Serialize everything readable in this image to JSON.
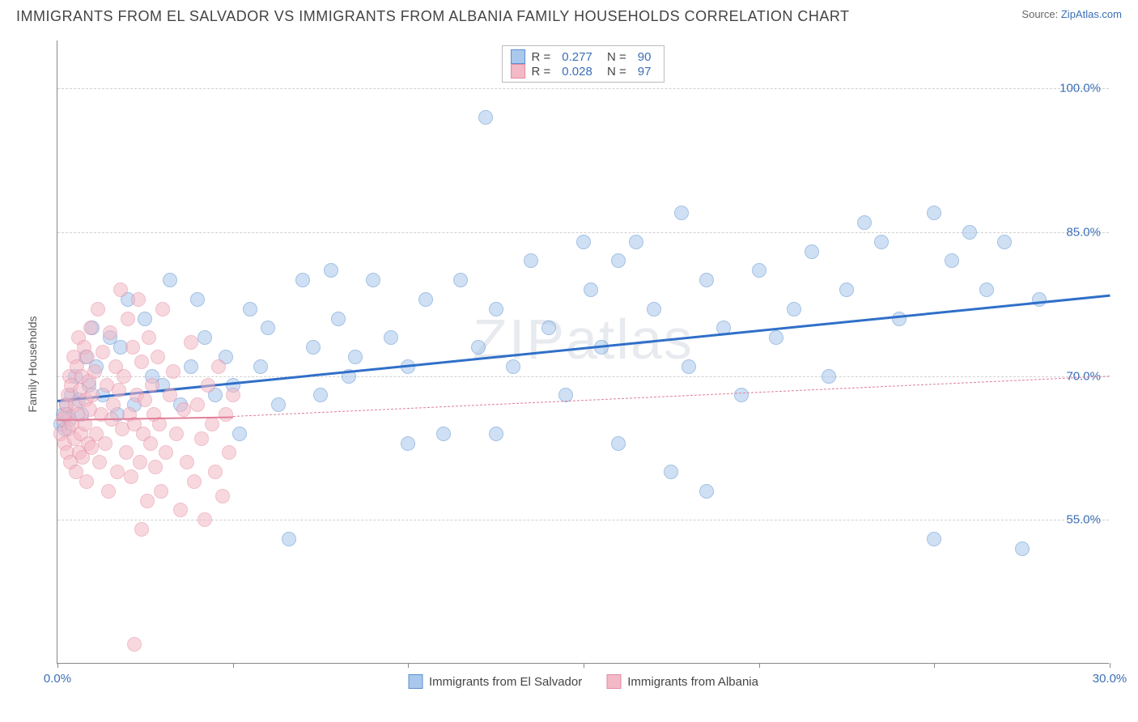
{
  "header": {
    "title": "IMMIGRANTS FROM EL SALVADOR VS IMMIGRANTS FROM ALBANIA FAMILY HOUSEHOLDS CORRELATION CHART",
    "source_label": "Source:",
    "source_name": "ZipAtlas.com"
  },
  "chart": {
    "type": "scatter",
    "ylabel": "Family Households",
    "watermark": "ZIPatlas",
    "xlim": [
      0,
      30
    ],
    "ylim": [
      40,
      105
    ],
    "xticks": [
      0,
      5,
      10,
      15,
      20,
      25,
      30
    ],
    "xtick_labels": {
      "0": "0.0%",
      "30": "30.0%"
    },
    "yticks": [
      55,
      70,
      85,
      100
    ],
    "ytick_labels": [
      "55.0%",
      "70.0%",
      "85.0%",
      "100.0%"
    ],
    "grid_color": "#d0d0d0",
    "axis_color": "#888888",
    "background_color": "#ffffff",
    "point_radius": 9,
    "point_opacity": 0.55,
    "series": [
      {
        "id": "el_salvador",
        "label": "Immigrants from El Salvador",
        "color_fill": "#a9c8ec",
        "color_stroke": "#5b8fd1",
        "R": "0.277",
        "N": "90",
        "trend": {
          "x1": 0,
          "y1": 67.5,
          "x2": 30,
          "y2": 78.5,
          "color": "#2f6fc9",
          "width": 3,
          "dash": false
        },
        "points": [
          [
            0.1,
            65
          ],
          [
            0.15,
            66
          ],
          [
            0.2,
            64.5
          ],
          [
            0.25,
            67
          ],
          [
            0.3,
            66
          ],
          [
            0.35,
            65.5
          ],
          [
            0.4,
            68
          ],
          [
            0.5,
            70
          ],
          [
            0.6,
            67.5
          ],
          [
            0.7,
            66
          ],
          [
            0.8,
            72
          ],
          [
            0.9,
            69
          ],
          [
            1.0,
            75
          ],
          [
            1.1,
            71
          ],
          [
            1.3,
            68
          ],
          [
            1.5,
            74
          ],
          [
            1.7,
            66
          ],
          [
            1.8,
            73
          ],
          [
            2.0,
            78
          ],
          [
            2.2,
            67
          ],
          [
            2.5,
            76
          ],
          [
            2.7,
            70
          ],
          [
            3.0,
            69
          ],
          [
            3.2,
            80
          ],
          [
            3.5,
            67
          ],
          [
            3.8,
            71
          ],
          [
            4.0,
            78
          ],
          [
            4.2,
            74
          ],
          [
            4.5,
            68
          ],
          [
            4.8,
            72
          ],
          [
            5.0,
            69
          ],
          [
            5.2,
            64
          ],
          [
            6.6,
            53
          ],
          [
            5.5,
            77
          ],
          [
            5.8,
            71
          ],
          [
            6.0,
            75
          ],
          [
            6.3,
            67
          ],
          [
            12.2,
            97
          ],
          [
            7.0,
            80
          ],
          [
            7.3,
            73
          ],
          [
            7.5,
            68
          ],
          [
            7.8,
            81
          ],
          [
            8.0,
            76
          ],
          [
            8.3,
            70
          ],
          [
            8.5,
            72
          ],
          [
            9.0,
            80
          ],
          [
            9.5,
            74
          ],
          [
            10.0,
            63
          ],
          [
            10.0,
            71
          ],
          [
            10.5,
            78
          ],
          [
            11.0,
            64
          ],
          [
            11.5,
            80
          ],
          [
            12.0,
            73
          ],
          [
            12.5,
            77
          ],
          [
            12.5,
            64
          ],
          [
            13.0,
            71
          ],
          [
            13.5,
            82
          ],
          [
            14.0,
            75
          ],
          [
            14.5,
            68
          ],
          [
            15.0,
            84
          ],
          [
            15.2,
            79
          ],
          [
            15.5,
            73
          ],
          [
            16.0,
            82
          ],
          [
            16.0,
            63
          ],
          [
            16.5,
            84
          ],
          [
            17.0,
            77
          ],
          [
            17.5,
            60
          ],
          [
            17.8,
            87
          ],
          [
            18.0,
            71
          ],
          [
            18.5,
            80
          ],
          [
            18.5,
            58
          ],
          [
            19.0,
            75
          ],
          [
            19.5,
            68
          ],
          [
            20.0,
            81
          ],
          [
            20.5,
            74
          ],
          [
            21.0,
            77
          ],
          [
            21.5,
            83
          ],
          [
            22.0,
            70
          ],
          [
            22.5,
            79
          ],
          [
            23.0,
            86
          ],
          [
            23.5,
            84
          ],
          [
            24.0,
            76
          ],
          [
            25.0,
            87
          ],
          [
            25.0,
            53
          ],
          [
            25.5,
            82
          ],
          [
            26.0,
            85
          ],
          [
            26.5,
            79
          ],
          [
            27.0,
            84
          ],
          [
            27.5,
            52
          ],
          [
            28.0,
            78
          ]
        ]
      },
      {
        "id": "albania",
        "label": "Immigrants from Albania",
        "color_fill": "#f3b9c6",
        "color_stroke": "#e48ba1",
        "R": "0.028",
        "N": "97",
        "trend": {
          "x1": 0,
          "y1": 65.5,
          "x2": 5,
          "y2": 65.8,
          "color": "#e07f98",
          "width": 2,
          "dash": false
        },
        "trend_ext": {
          "x1": 5,
          "y1": 65.8,
          "x2": 30,
          "y2": 70.0,
          "color": "#e07f98",
          "width": 1.5,
          "dash": true
        },
        "points": [
          [
            0.1,
            64
          ],
          [
            0.15,
            65.5
          ],
          [
            0.2,
            63
          ],
          [
            0.22,
            66
          ],
          [
            0.25,
            67
          ],
          [
            0.28,
            62
          ],
          [
            0.3,
            68
          ],
          [
            0.32,
            64.5
          ],
          [
            0.35,
            70
          ],
          [
            0.38,
            61
          ],
          [
            0.4,
            69
          ],
          [
            0.42,
            65
          ],
          [
            0.45,
            72
          ],
          [
            0.48,
            63.5
          ],
          [
            0.5,
            67
          ],
          [
            0.52,
            60
          ],
          [
            0.55,
            71
          ],
          [
            0.58,
            66
          ],
          [
            0.6,
            74
          ],
          [
            0.62,
            62
          ],
          [
            0.65,
            68.5
          ],
          [
            0.68,
            64
          ],
          [
            0.7,
            70
          ],
          [
            0.72,
            61.5
          ],
          [
            0.75,
            73
          ],
          [
            0.78,
            65
          ],
          [
            0.8,
            67.5
          ],
          [
            0.82,
            59
          ],
          [
            0.85,
            72
          ],
          [
            0.88,
            63
          ],
          [
            0.9,
            69.5
          ],
          [
            0.92,
            66.5
          ],
          [
            0.95,
            75
          ],
          [
            0.98,
            62.5
          ],
          [
            1.0,
            68
          ],
          [
            1.05,
            70.5
          ],
          [
            1.1,
            64
          ],
          [
            1.15,
            77
          ],
          [
            1.2,
            61
          ],
          [
            1.25,
            66
          ],
          [
            1.3,
            72.5
          ],
          [
            1.35,
            63
          ],
          [
            1.4,
            69
          ],
          [
            1.45,
            58
          ],
          [
            1.5,
            74.5
          ],
          [
            1.55,
            65.5
          ],
          [
            1.6,
            67
          ],
          [
            1.65,
            71
          ],
          [
            1.7,
            60
          ],
          [
            1.75,
            68.5
          ],
          [
            1.8,
            79
          ],
          [
            1.85,
            64.5
          ],
          [
            1.9,
            70
          ],
          [
            1.95,
            62
          ],
          [
            2.0,
            76
          ],
          [
            2.05,
            66
          ],
          [
            2.1,
            59.5
          ],
          [
            2.15,
            73
          ],
          [
            2.2,
            65
          ],
          [
            2.25,
            68
          ],
          [
            2.3,
            78
          ],
          [
            2.35,
            61
          ],
          [
            2.4,
            71.5
          ],
          [
            2.45,
            64
          ],
          [
            2.5,
            67.5
          ],
          [
            2.55,
            57
          ],
          [
            2.6,
            74
          ],
          [
            2.65,
            63
          ],
          [
            2.7,
            69
          ],
          [
            2.75,
            66
          ],
          [
            2.8,
            60.5
          ],
          [
            2.85,
            72
          ],
          [
            2.9,
            65
          ],
          [
            2.95,
            58
          ],
          [
            3.0,
            77
          ],
          [
            3.1,
            62
          ],
          [
            3.2,
            68
          ],
          [
            3.3,
            70.5
          ],
          [
            3.4,
            64
          ],
          [
            3.5,
            56
          ],
          [
            3.6,
            66.5
          ],
          [
            3.7,
            61
          ],
          [
            3.8,
            73.5
          ],
          [
            3.9,
            59
          ],
          [
            4.0,
            67
          ],
          [
            4.1,
            63.5
          ],
          [
            4.2,
            55
          ],
          [
            4.3,
            69
          ],
          [
            4.4,
            65
          ],
          [
            4.5,
            60
          ],
          [
            4.6,
            71
          ],
          [
            4.7,
            57.5
          ],
          [
            4.8,
            66
          ],
          [
            4.9,
            62
          ],
          [
            5.0,
            68
          ],
          [
            2.2,
            42
          ],
          [
            2.4,
            54
          ]
        ]
      }
    ]
  }
}
